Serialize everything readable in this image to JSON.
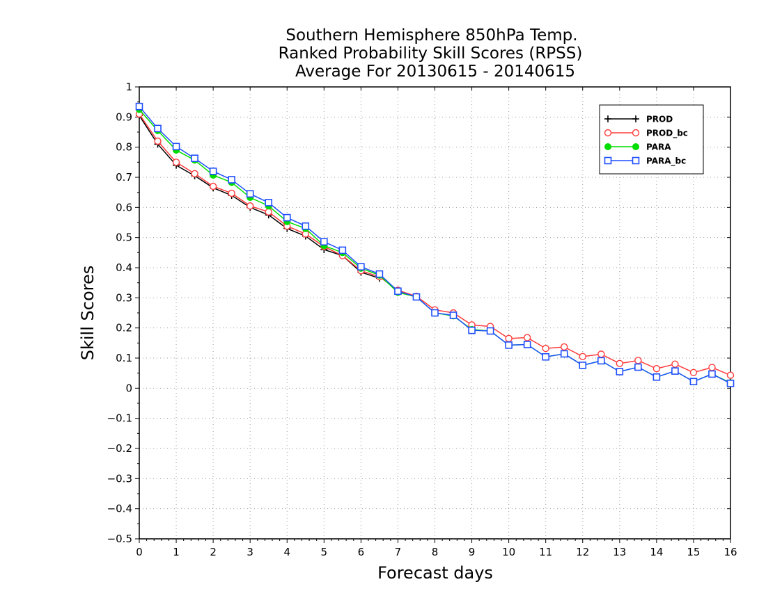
{
  "chart_data": {
    "type": "line",
    "title_lines": [
      "Southern Hemisphere 850hPa Temp.",
      "Ranked Probability Skill Scores (RPSS)",
      "Average For 20130615 - 20140615"
    ],
    "xlabel": "Forecast days",
    "ylabel": "Skill Scores",
    "xlim": [
      0,
      16
    ],
    "ylim": [
      -0.5,
      1
    ],
    "x_ticks": [
      0,
      1,
      2,
      3,
      4,
      5,
      6,
      7,
      8,
      9,
      10,
      11,
      12,
      13,
      14,
      15,
      16
    ],
    "y_ticks": [
      -0.5,
      -0.4,
      -0.3,
      -0.2,
      -0.1,
      0,
      0.1,
      0.2,
      0.3,
      0.4,
      0.5,
      0.6,
      0.7,
      0.8,
      0.9,
      1
    ],
    "grid": true,
    "legend_position": "top-right",
    "x": [
      0,
      0.5,
      1,
      1.5,
      2,
      2.5,
      3,
      3.5,
      4,
      4.5,
      5,
      5.5,
      6,
      6.5,
      7,
      7.5,
      8,
      8.5,
      9,
      9.5,
      10,
      10.5,
      11,
      11.5,
      12,
      12.5,
      13,
      13.5,
      14,
      14.5,
      15,
      15.5,
      16
    ],
    "series": [
      {
        "name": "PROD",
        "color": "#000000",
        "marker": "plus",
        "values": [
          0.905,
          0.81,
          0.74,
          0.705,
          0.665,
          0.64,
          0.6,
          0.575,
          0.53,
          0.505,
          0.46,
          0.44,
          0.385,
          0.365,
          null,
          null,
          null,
          null,
          null,
          null,
          null,
          null,
          null,
          null,
          null,
          null,
          null,
          null,
          null,
          null,
          null,
          null,
          null
        ]
      },
      {
        "name": "PROD_bc",
        "color": "#ff3b3b",
        "marker": "open-circle",
        "values": [
          0.91,
          0.82,
          0.75,
          0.712,
          0.67,
          0.647,
          0.605,
          0.585,
          0.538,
          0.512,
          0.47,
          0.44,
          0.39,
          0.37,
          0.325,
          0.305,
          0.26,
          0.25,
          0.21,
          0.205,
          0.165,
          0.168,
          0.132,
          0.137,
          0.105,
          0.113,
          0.082,
          0.092,
          0.065,
          0.08,
          0.052,
          0.069,
          0.043
        ]
      },
      {
        "name": "PARA",
        "color": "#00dd00",
        "marker": "filled-circle",
        "values": [
          0.925,
          0.855,
          0.79,
          0.757,
          0.707,
          0.683,
          0.633,
          0.605,
          0.553,
          0.53,
          0.473,
          0.45,
          0.398,
          0.375,
          0.318,
          0.303,
          0.25,
          0.24,
          0.195,
          0.19,
          0.143,
          0.145,
          0.104,
          0.114,
          0.076,
          0.091,
          0.055,
          0.07,
          0.037,
          0.057,
          0.022,
          0.047,
          0.018
        ]
      },
      {
        "name": "PARA_bc",
        "color": "#1f4fff",
        "marker": "open-square",
        "values": [
          0.935,
          0.862,
          0.802,
          0.763,
          0.72,
          0.692,
          0.645,
          0.616,
          0.566,
          0.538,
          0.486,
          0.458,
          0.403,
          0.379,
          0.322,
          0.303,
          0.25,
          0.242,
          0.192,
          0.19,
          0.143,
          0.145,
          0.104,
          0.114,
          0.076,
          0.091,
          0.055,
          0.07,
          0.037,
          0.057,
          0.022,
          0.047,
          0.016
        ]
      }
    ]
  }
}
